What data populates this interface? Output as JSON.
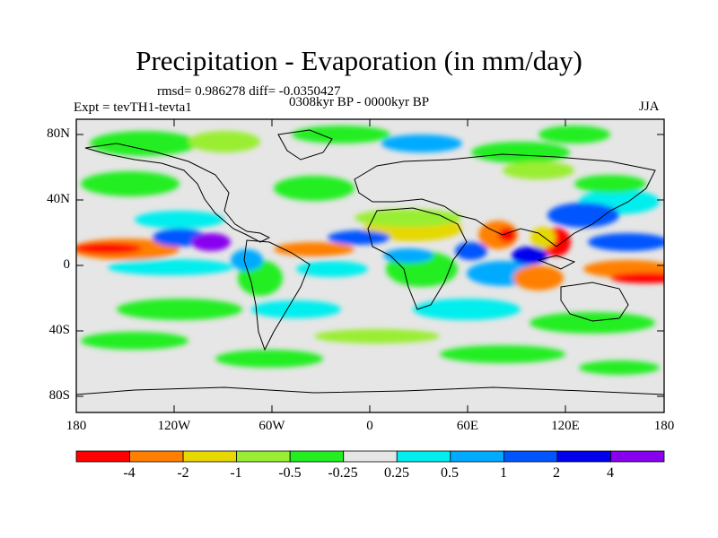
{
  "title": "Precipitation - Evaporation (in mm/day)",
  "stats": "rmsd= 0.986278 diff= -0.0350427",
  "period": "0308kyr BP - 0000kyr BP",
  "experiment": "Expt = tevTH1-tevta1",
  "season": "JJA",
  "y_axis_labels": [
    "80N",
    "40N",
    "0",
    "40S",
    "80S"
  ],
  "x_axis_labels": [
    "180",
    "120W",
    "60W",
    "0",
    "60E",
    "120E",
    "180"
  ],
  "colorbar": {
    "labels": [
      "-4",
      "-2",
      "-1",
      "-0.5",
      "-0.25",
      "0.25",
      "0.5",
      "1",
      "2",
      "4"
    ],
    "colors": [
      "#ff0000",
      "#ff8000",
      "#e6d800",
      "#99ee33",
      "#22ee22",
      "#e6e6e6",
      "#00eeee",
      "#00aaff",
      "#0055ff",
      "#0000ee",
      "#8800ee"
    ]
  },
  "colors": {
    "land_background": "#e6e6e6",
    "frame": "#000000"
  }
}
